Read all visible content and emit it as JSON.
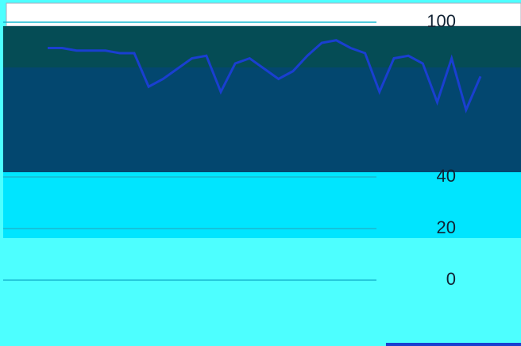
{
  "chart_data": {
    "type": "line",
    "categories": [
      null,
      null,
      null,
      null,
      null,
      null,
      null,
      null,
      null,
      null,
      null,
      null,
      null,
      null,
      null,
      null,
      null,
      null,
      null,
      null,
      null,
      null,
      null,
      null,
      null,
      null,
      null,
      null,
      null,
      null,
      null
    ],
    "series": [
      {
        "color": "#1a3fd0",
        "values": [
          90,
          90,
          89,
          89,
          89,
          88,
          88,
          75,
          78,
          82,
          86,
          87,
          73,
          84,
          86,
          82,
          78,
          81,
          87,
          92,
          93,
          90,
          88,
          73,
          86,
          87,
          84,
          69,
          86,
          66,
          79
        ]
      }
    ],
    "ylim": [
      0,
      100
    ],
    "yticks": [
      0,
      20,
      40,
      100
    ],
    "grid": true
  }
}
